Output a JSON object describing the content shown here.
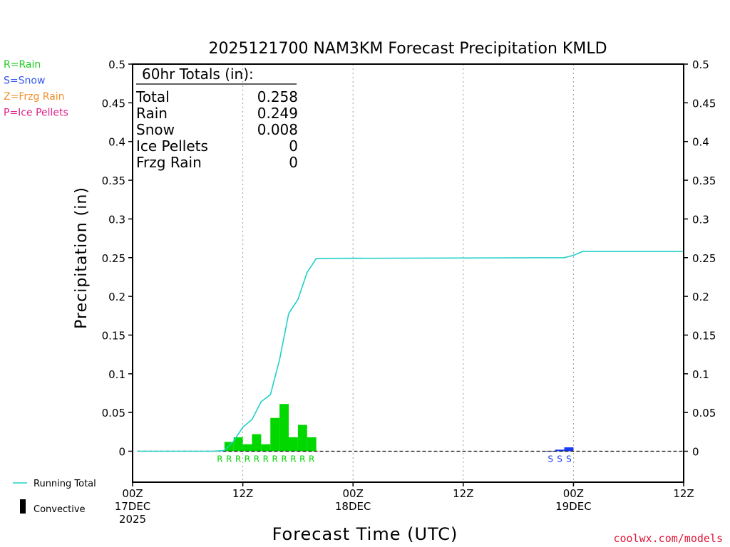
{
  "chart_data": {
    "type": "bar",
    "title": "2025121700 NAM3KM Forecast Precipitation KMLD",
    "xlabel": "Forecast Time (UTC)",
    "ylabel": "Precipitation (in)",
    "ylim": [
      -0.04,
      0.5
    ],
    "xlim_hours": [
      0,
      60
    ],
    "yticks": [
      "0.5",
      "0.45",
      "0.4",
      "0.35",
      "0.3",
      "0.25",
      "0.2",
      "0.15",
      "0.1",
      "0.05",
      "0"
    ],
    "ytick_values": [
      0.5,
      0.45,
      0.4,
      0.35,
      0.3,
      0.25,
      0.2,
      0.15,
      0.1,
      0.05,
      0
    ],
    "xticks": [
      {
        "hour": 0,
        "lines": [
          "00Z",
          "17DEC",
          "2025"
        ]
      },
      {
        "hour": 12,
        "lines": [
          "12Z"
        ]
      },
      {
        "hour": 24,
        "lines": [
          "00Z",
          "18DEC"
        ]
      },
      {
        "hour": 36,
        "lines": [
          "12Z"
        ]
      },
      {
        "hour": 48,
        "lines": [
          "00Z",
          "19DEC"
        ]
      },
      {
        "hour": 60,
        "lines": [
          "12Z"
        ]
      }
    ],
    "running_total": {
      "name": "Running Total",
      "color": "#20d0c8",
      "hours": [
        0.5,
        9,
        10,
        11,
        12,
        13,
        14,
        15,
        16,
        17,
        18,
        19,
        20,
        47,
        48,
        49,
        60
      ],
      "values": [
        0,
        0,
        0.001,
        0.013,
        0.031,
        0.041,
        0.064,
        0.073,
        0.118,
        0.178,
        0.196,
        0.231,
        0.249,
        0.25,
        0.253,
        0.258,
        0.258
      ]
    },
    "series": [
      {
        "name": "Rain",
        "type_letter": "R",
        "color": "#00d800",
        "hours": [
          10,
          11,
          12,
          13,
          14,
          15,
          16,
          17,
          18,
          19,
          20
        ],
        "values": [
          0.001,
          0.012,
          0.018,
          0.009,
          0.022,
          0.009,
          0.043,
          0.061,
          0.018,
          0.034,
          0.018
        ]
      },
      {
        "name": "Snow",
        "type_letter": "S",
        "color": "#1a3cf0",
        "hours": [
          46,
          47,
          48
        ],
        "values": [
          0.0005,
          0.002,
          0.005
        ]
      }
    ],
    "totals_box": {
      "header": "60hr Totals (in):",
      "rows": [
        {
          "label": "Total",
          "value": "0.258"
        },
        {
          "label": "Rain",
          "value": "0.249"
        },
        {
          "label": "Snow",
          "value": "0.008"
        },
        {
          "label": "Ice Pellets",
          "value": "0"
        },
        {
          "label": "Frzg Rain",
          "value": "0"
        }
      ]
    },
    "key": [
      {
        "text": "R=Rain",
        "color": "#22cc22"
      },
      {
        "text": "S=Snow",
        "color": "#3355ee"
      },
      {
        "text": "Z=Frzg Rain",
        "color": "#f0902a"
      },
      {
        "text": "P=Ice Pellets",
        "color": "#e0208a"
      }
    ],
    "legend": [
      {
        "text": "Running Total",
        "kind": "line",
        "color": "#20d0c8"
      },
      {
        "text": "Convective",
        "kind": "bar",
        "color": "#000000"
      }
    ],
    "credit": "coolwx.com/models"
  }
}
